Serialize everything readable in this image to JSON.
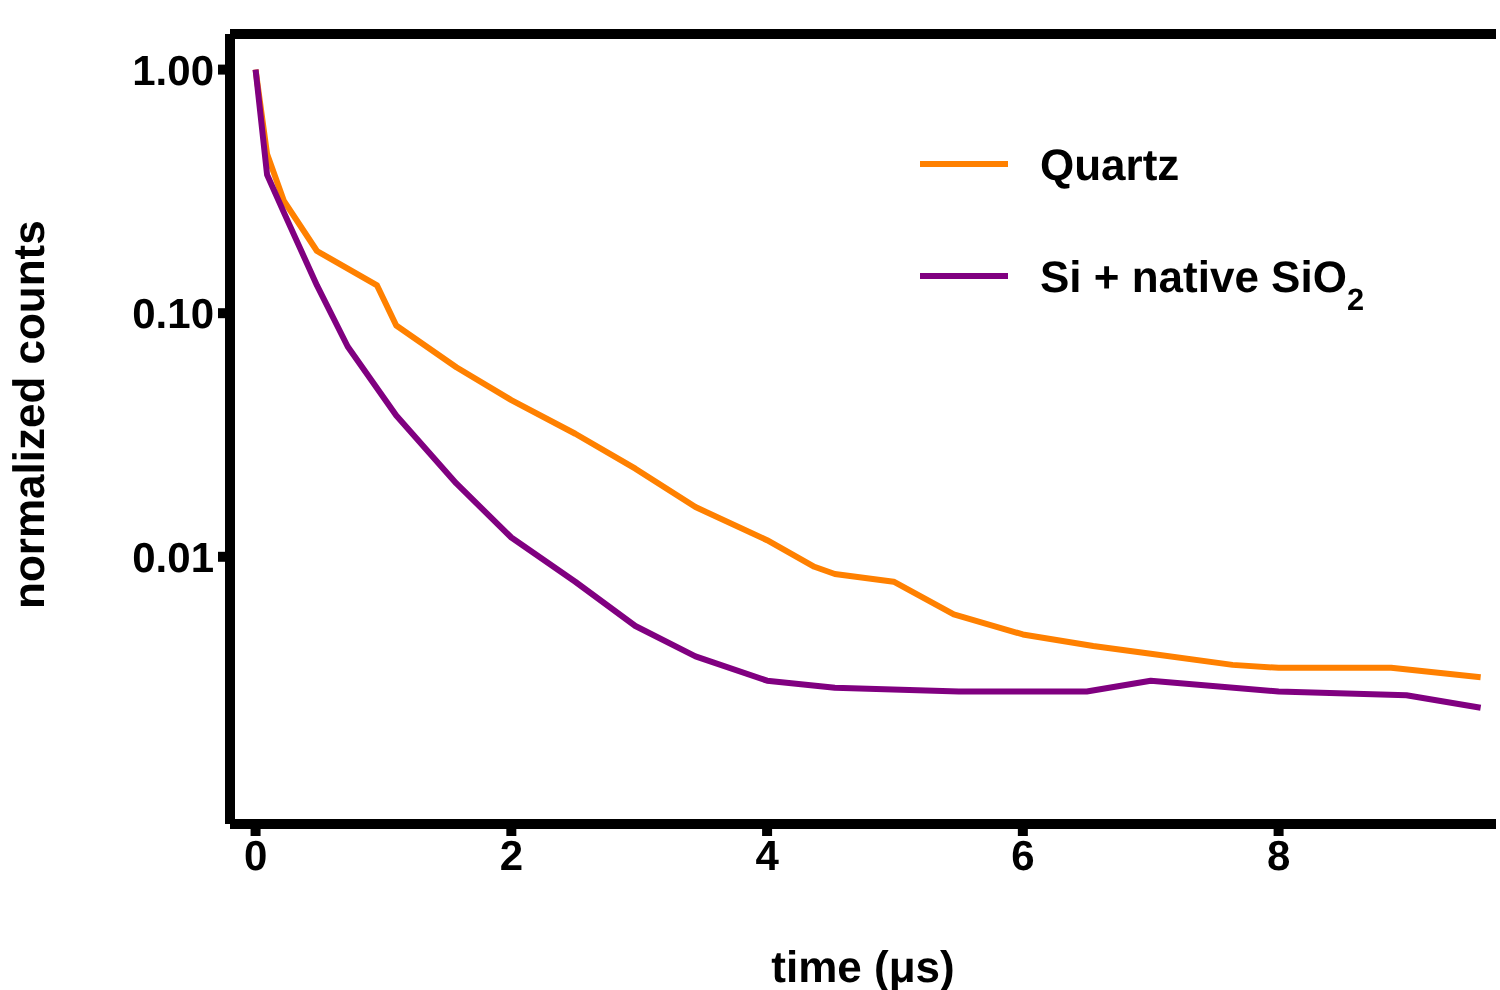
{
  "chart_data": {
    "type": "line",
    "xlabel": "time (μs)",
    "ylabel": "normalized counts",
    "log": "y",
    "legend": "top right",
    "marker": "none",
    "line_style": "solid",
    "xlim": [
      -0.2,
      9.7
    ],
    "xticks": [
      0,
      2,
      4,
      6,
      8
    ],
    "ylim": [
      0.0008,
      1.4
    ],
    "yticks": [
      {
        "value": 1,
        "label": "1.00"
      },
      {
        "value": 0.1,
        "label": "0.10"
      },
      {
        "value": 0.01,
        "label": "0.01"
      }
    ],
    "series": [
      {
        "name": "Quartz",
        "color": "#ff8000",
        "x": [
          0,
          0.09,
          0.22,
          0.48,
          0.95,
          1.1,
          1.57,
          2.0,
          2.5,
          2.97,
          3.44,
          4.0,
          4.37,
          4.53,
          4.99,
          5.46,
          6.0,
          6.55,
          7.0,
          7.64,
          8.0,
          8.88,
          9.58
        ],
        "values": [
          1.0,
          0.45,
          0.29,
          0.18,
          0.13,
          0.089,
          0.06,
          0.044,
          0.032,
          0.023,
          0.016,
          0.0117,
          0.0091,
          0.0085,
          0.0079,
          0.0058,
          0.0048,
          0.0043,
          0.004,
          0.0036,
          0.0035,
          0.0035,
          0.0032
        ]
      },
      {
        "name": "Si + native SiO$_{2}$",
        "color": "#800080",
        "x": [
          0,
          0.09,
          0.22,
          0.48,
          0.72,
          1.1,
          1.57,
          2.0,
          2.5,
          2.97,
          3.44,
          4.0,
          4.53,
          5.5,
          6.5,
          7.0,
          8.0,
          9.0,
          9.58
        ],
        "values": [
          1.0,
          0.37,
          0.26,
          0.13,
          0.073,
          0.038,
          0.02,
          0.012,
          0.0079,
          0.0052,
          0.0039,
          0.0031,
          0.0029,
          0.0028,
          0.0028,
          0.0031,
          0.0028,
          0.0027,
          0.0024
        ]
      }
    ]
  }
}
